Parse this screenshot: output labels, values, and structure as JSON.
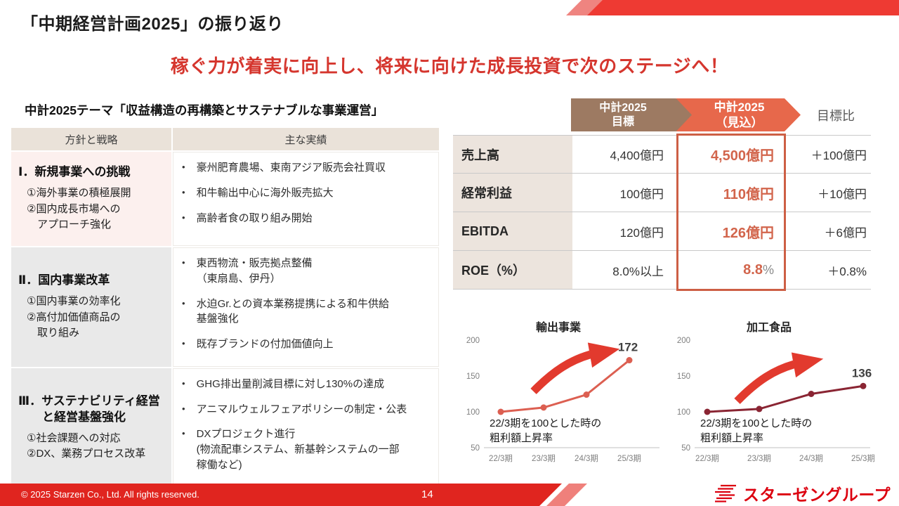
{
  "slide": {
    "title": "「中期経営計画2025」の振り返り",
    "subtitle": "稼ぐ力が着実に向上し、将来に向けた成長投資で次のステージへ！",
    "page_number": "14",
    "copyright": "© 2025 Starzen Co., Ltd. All rights reserved.",
    "logo_text": "スターゼングループ"
  },
  "strategy": {
    "heading": "中計2025テーマ「収益構造の再構築とサステナブルな事業運営」",
    "columns": {
      "policy": "方針と戦略",
      "results": "主な実績"
    },
    "rows": [
      {
        "title": "Ⅰ．新規事業への挑戦",
        "points": "①海外事業の積極展開\n②国内成長市場への\n　アプローチ強化",
        "achievements": [
          "豪州肥育農場、東南アジア販売会社買収",
          "和牛輸出中心に海外販売拡大",
          "高齢者食の取り組み開始"
        ]
      },
      {
        "title": "Ⅱ．国内事業改革",
        "points": "①国内事業の効率化\n②高付加価値商品の\n　取り組み",
        "achievements": [
          "東西物流・販売拠点整備\n（東扇島、伊丹）",
          "水迫Gr.との資本業務提携による和牛供給\n基盤強化",
          "既存ブランドの付加価値向上"
        ]
      },
      {
        "title": "Ⅲ．サステナビリティ経営\n　　と経営基盤強化",
        "points": "①社会課題への対応\n②DX、業務プロセス改革",
        "achievements": [
          "GHG排出量削減目標に対し130%の達成",
          "アニマルウェルフェアポリシーの制定・公表",
          "DXプロジェクト進行\n(物流配車システム、新基幹システムの一部\n稼働など)"
        ]
      }
    ]
  },
  "kpi": {
    "header_target": "中計2025\n目標",
    "header_forecast": "中計2025\n（見込）",
    "header_ratio": "目標比",
    "rows": [
      {
        "label": "売上高",
        "target": "4,400億円",
        "forecast": "4,500億円",
        "suffix": "",
        "diff": "＋100億円"
      },
      {
        "label": "経常利益",
        "target": "100億円",
        "forecast": "110億円",
        "suffix": "",
        "diff": "＋10億円"
      },
      {
        "label": "EBITDA",
        "target": "120億円",
        "forecast": "126億円",
        "suffix": "",
        "diff": "＋6億円"
      },
      {
        "label": "ROE（%）",
        "target": "8.0%以上",
        "forecast": "8.8",
        "suffix": "%",
        "diff": "＋0.8%"
      }
    ]
  },
  "chart_data": [
    {
      "type": "line",
      "title": "輸出事業",
      "categories": [
        "22/3期",
        "23/3期",
        "24/3期",
        "25/3期"
      ],
      "values": [
        100,
        106,
        124,
        172
      ],
      "end_label": "172",
      "yticks": [
        200,
        150,
        100,
        50
      ],
      "ylim": [
        50,
        200
      ],
      "grid": false,
      "legend": "none",
      "line_color": "#dc5f51",
      "note": "22/3期を100とした時の\n粗利額上昇率",
      "x0": 68,
      "dx": 61
    },
    {
      "type": "line",
      "title": "加工食品",
      "categories": [
        "22/3期",
        "23/3期",
        "24/3期",
        "25/3期"
      ],
      "values": [
        100,
        104,
        125,
        136
      ],
      "end_label": "136",
      "yticks": [
        200,
        150,
        100,
        50
      ],
      "ylim": [
        50,
        200
      ],
      "grid": false,
      "legend": "none",
      "line_color": "#8a2533",
      "note": "22/3期を100とした時の\n粗利額上昇率",
      "x0": 62,
      "dx": 74
    }
  ],
  "colors": {
    "accent_red": "#e0251f",
    "deco_red": "#ee3a33",
    "subtitle_red": "#d5362e",
    "brown": "#9d7a62",
    "orange": "#e7684b",
    "orange_value_text": "#d2654c",
    "highlight_border": "#cd5f45",
    "label_cell_beige": "#ece4dd",
    "header_beige": "#eae2d9",
    "pink_cell": "#fcf0ee",
    "gray_cell": "#e9e9e9",
    "chart_line_export": "#dc5f51",
    "chart_line_processed": "#8a2533",
    "arrow_red": "#e23a2e",
    "logo_red": "#dc000f"
  }
}
